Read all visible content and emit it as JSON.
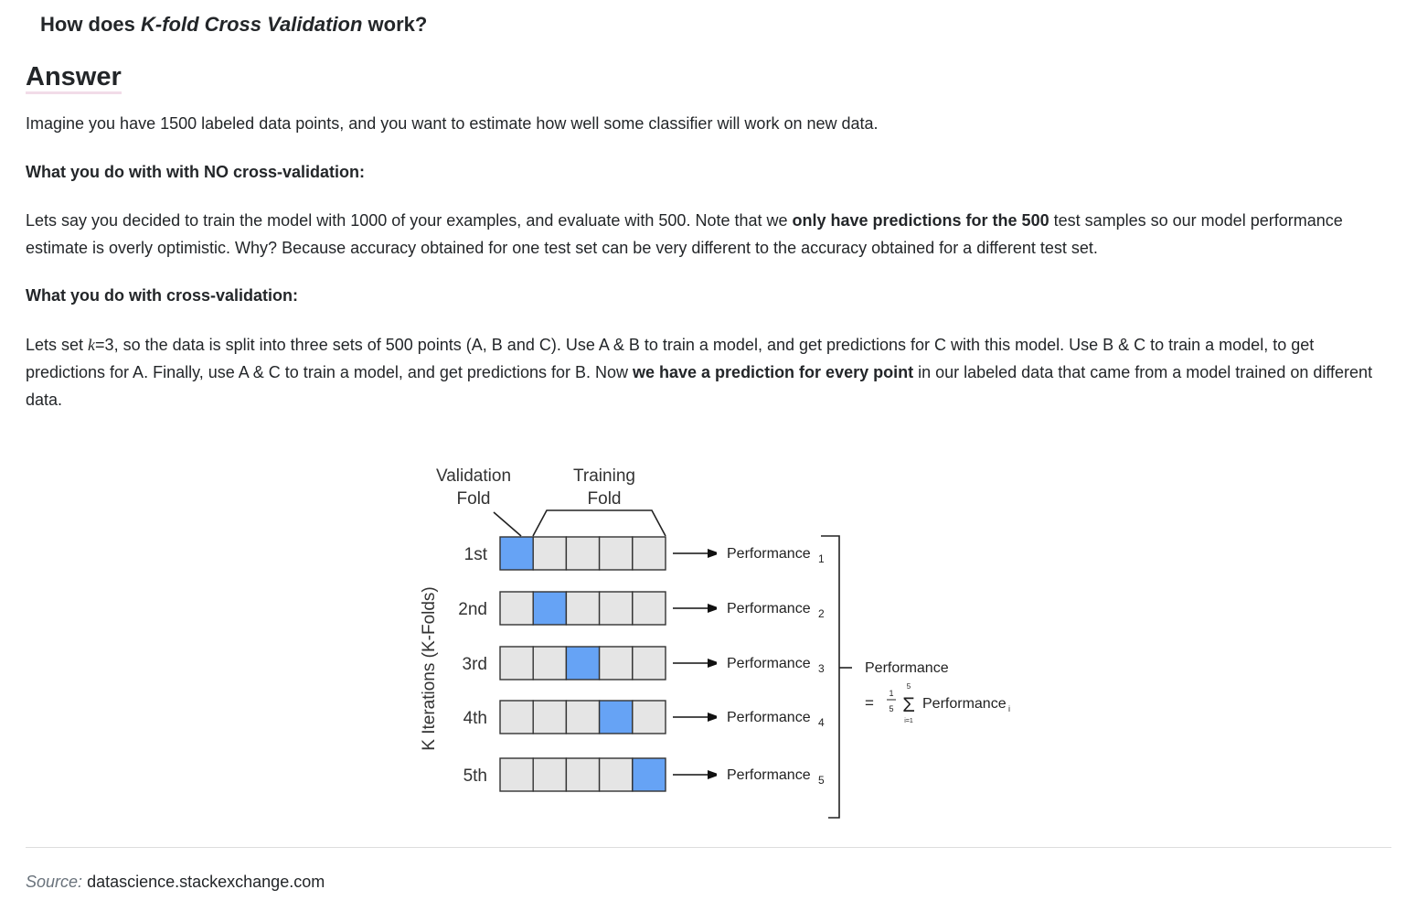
{
  "question": {
    "prefix": "How does ",
    "emphasis": "K-fold Cross Validation",
    "suffix": " work?"
  },
  "answer_heading": "Answer",
  "intro": "Imagine you have 1500 labeled data points, and you want to estimate how well some classifier will work on new data.",
  "no_cv": {
    "heading": "What you do with with NO cross-validation:",
    "text_1": "Lets say you decided to train the model with 1000 of your examples, and evaluate with 500. Note that we ",
    "bold_1": "only have predictions for the 500",
    "text_2": " test samples so our model performance estimate is overly optimistic. Why? Because accuracy obtained for one test set can be very different to the accuracy obtained for a different test set."
  },
  "cv": {
    "heading": "What you do with cross-validation:",
    "text_1": "Lets set ",
    "k_var": "k",
    "text_2": "=3, so the data is split into three sets of 500 points (A, B and C). Use A & B to train a model, and get predictions for C with this model. Use B & C to train a model, to get predictions for A. Finally, use A & C to train a model, and get predictions for B. Now ",
    "bold_1": "we have a prediction for every point",
    "text_3": " in our labeled data that came from a model trained on different data."
  },
  "diagram": {
    "validation_label_line1": "Validation",
    "validation_label_line2": "Fold",
    "training_label_line1": "Training",
    "training_label_line2": "Fold",
    "y_axis_label": "K Iterations (K-Folds)",
    "iterations": [
      {
        "label": "1st",
        "perf": "Performance",
        "sub": "1",
        "validation_index": 0
      },
      {
        "label": "2nd",
        "perf": "Performance",
        "sub": "2",
        "validation_index": 1
      },
      {
        "label": "3rd",
        "perf": "Performance",
        "sub": "3",
        "validation_index": 2
      },
      {
        "label": "4th",
        "perf": "Performance",
        "sub": "4",
        "validation_index": 3
      },
      {
        "label": "5th",
        "perf": "Performance",
        "sub": "5",
        "validation_index": 4
      }
    ],
    "fold_count": 5,
    "summary_title": "Performance",
    "formula_equals": "=",
    "formula_num": "1",
    "formula_den": "5",
    "formula_sigma": "Σ",
    "formula_upper": "5",
    "formula_lower": "i=1",
    "formula_term": "Performance",
    "formula_term_sub": "i",
    "colors": {
      "validation": "#66a3f5",
      "training": "#e5e5e5",
      "border": "#333333"
    }
  },
  "source": {
    "label": "Source:",
    "site": "datascience.stackexchange.com"
  }
}
